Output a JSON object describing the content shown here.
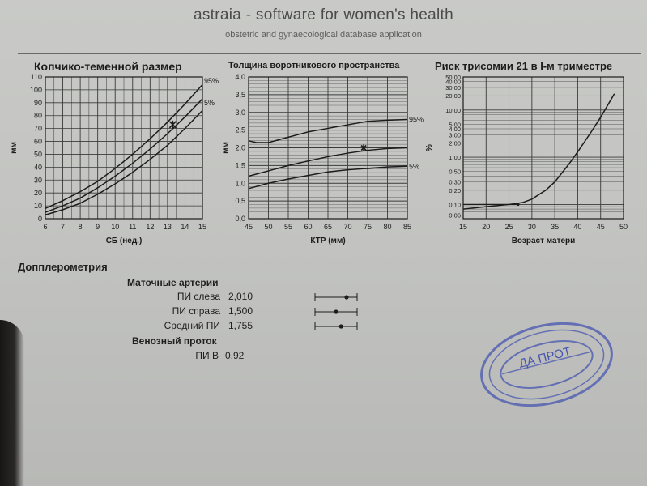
{
  "header": {
    "title": "astraia - software for women's health",
    "subtitle": "obstetric and gynaecological database application"
  },
  "charts": {
    "crl": {
      "title": "Копчико-теменной размер",
      "xlabel": "СБ (нед.)",
      "ylabel": "мм",
      "xticks": [
        "6",
        "7",
        "8",
        "9",
        "10",
        "11",
        "12",
        "13",
        "14",
        "15"
      ],
      "yticks": [
        "0",
        "10",
        "20",
        "30",
        "40",
        "50",
        "60",
        "70",
        "80",
        "90",
        "100",
        "110"
      ],
      "label_95": "95%",
      "label_5": "5%"
    },
    "nt": {
      "title": "Толщина воротникового пространства",
      "xlabel": "КТР (мм)",
      "ylabel": "мм",
      "xticks": [
        "45",
        "50",
        "55",
        "60",
        "65",
        "70",
        "75",
        "80",
        "85"
      ],
      "yticks": [
        "0,0",
        "0,5",
        "1,0",
        "1,5",
        "2,0",
        "2,5",
        "3,0",
        "3,5",
        "4,0"
      ],
      "label_95": "95%",
      "label_5": "5%"
    },
    "risk": {
      "title": "Риск трисомии 21 в I-м триместре",
      "xlabel": "Возраст матери",
      "ylabel": "%",
      "xticks": [
        "15",
        "20",
        "25",
        "30",
        "35",
        "40",
        "45",
        "50"
      ],
      "yticks": [
        "0,06",
        "0,10",
        "0,20",
        "0,30",
        "0,50",
        "1,00",
        "2,00",
        "3,00",
        "4,00",
        "5,00",
        "10,00",
        "20,00",
        "30,00",
        "40,00",
        "50,00"
      ]
    }
  },
  "chart_data": [
    {
      "type": "line",
      "title": "Копчико-теменной размер",
      "xlabel": "СБ (нед.)",
      "ylabel": "мм",
      "xlim": [
        6,
        15
      ],
      "ylim": [
        0,
        110
      ],
      "series": [
        {
          "name": "95%",
          "x": [
            6,
            7,
            8,
            9,
            10,
            11,
            12,
            13,
            14,
            15
          ],
          "y": [
            8,
            14,
            21,
            29,
            39,
            50,
            62,
            75,
            89,
            104
          ]
        },
        {
          "name": "",
          "x": [
            6,
            7,
            8,
            9,
            10,
            11,
            12,
            13,
            14,
            15
          ],
          "y": [
            5,
            10,
            16,
            24,
            33,
            43,
            54,
            66,
            79,
            93
          ]
        },
        {
          "name": "5%",
          "x": [
            6,
            7,
            8,
            9,
            10,
            11,
            12,
            13,
            14,
            15
          ],
          "y": [
            3,
            7,
            12,
            19,
            27,
            36,
            46,
            57,
            70,
            84
          ]
        }
      ],
      "marker": {
        "x": 13.3,
        "y": 73
      }
    },
    {
      "type": "line",
      "title": "Толщина воротникового пространства",
      "xlabel": "КТР (мм)",
      "ylabel": "мм",
      "xlim": [
        45,
        85
      ],
      "ylim": [
        0,
        4
      ],
      "series": [
        {
          "name": "95%",
          "x": [
            45,
            47,
            50,
            55,
            60,
            65,
            70,
            75,
            80,
            85
          ],
          "y": [
            2.2,
            2.15,
            2.15,
            2.3,
            2.45,
            2.55,
            2.65,
            2.75,
            2.78,
            2.8
          ]
        },
        {
          "name": "",
          "x": [
            45,
            50,
            55,
            60,
            65,
            70,
            75,
            80,
            85
          ],
          "y": [
            1.2,
            1.35,
            1.5,
            1.63,
            1.75,
            1.85,
            1.93,
            1.98,
            2.0
          ]
        },
        {
          "name": "5%",
          "x": [
            45,
            50,
            55,
            60,
            65,
            70,
            75,
            80,
            85
          ],
          "y": [
            0.85,
            1.0,
            1.12,
            1.22,
            1.32,
            1.38,
            1.42,
            1.46,
            1.48
          ]
        }
      ],
      "marker": {
        "x": 74,
        "y": 2.0
      }
    },
    {
      "type": "line",
      "title": "Риск трисомии 21 в I-м триместре",
      "xlabel": "Возраст матери",
      "ylabel": "%",
      "xlim": [
        15,
        50
      ],
      "ylim": [
        0.05,
        50
      ],
      "yscale": "log",
      "series": [
        {
          "name": "",
          "x": [
            15,
            20,
            25,
            28,
            30,
            33,
            35,
            38,
            40,
            43,
            45,
            48
          ],
          "y": [
            0.08,
            0.09,
            0.1,
            0.11,
            0.13,
            0.2,
            0.3,
            0.7,
            1.3,
            3.5,
            7,
            22
          ]
        }
      ],
      "marker": {
        "x": 27,
        "y": 0.1
      }
    }
  ],
  "doppler": {
    "title": "Допплерометрия",
    "uterine_title": "Маточные артерии",
    "rows": [
      {
        "label": "ПИ слева",
        "value": "2,010"
      },
      {
        "label": "ПИ справа",
        "value": "1,500"
      },
      {
        "label": "Средний ПИ",
        "value": "1,755"
      }
    ],
    "ranges": [
      {
        "low": 0,
        "high": 1,
        "point": 0.75
      },
      {
        "low": 0,
        "high": 1,
        "point": 0.5
      },
      {
        "low": 0,
        "high": 1,
        "point": 0.62
      }
    ],
    "venous_title": "Венозный проток",
    "pi_v_label": "ПИ В",
    "pi_v_value": "0,92"
  },
  "stamp": {
    "text": "ДА ПРОТ"
  },
  "colors": {
    "ink": "#1c1c1c",
    "grid": "#3a3a3a",
    "stamp": "#3f4fa8"
  }
}
